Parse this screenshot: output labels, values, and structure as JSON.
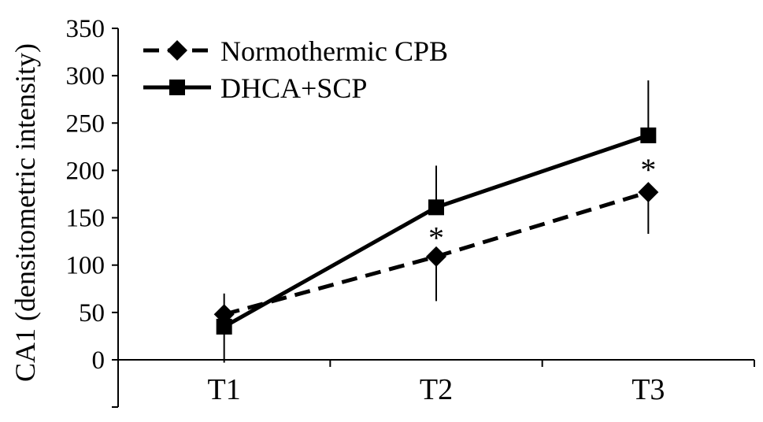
{
  "chart_data": {
    "type": "line",
    "title": "",
    "xlabel": "",
    "ylabel": "CA1 (densitometric intensity)",
    "categories": [
      "T1",
      "T2",
      "T3"
    ],
    "ylim": [
      0,
      350
    ],
    "yticks": [
      0,
      50,
      100,
      150,
      200,
      250,
      300,
      350
    ],
    "ytick_labels": [
      "0",
      "50",
      "100",
      "150",
      "200",
      "250",
      "300",
      "350"
    ],
    "grid": false,
    "legend_position": "top-left",
    "series": [
      {
        "name": "Normothermic CPB",
        "marker": "diamond",
        "line_style": "dashed",
        "color": "#000000",
        "values": [
          48,
          109,
          177
        ],
        "error_upper": [
          22,
          0,
          0
        ],
        "error_lower": [
          0,
          47,
          44
        ]
      },
      {
        "name": "DHCA+SCP",
        "marker": "square",
        "line_style": "solid",
        "color": "#000000",
        "values": [
          35,
          161,
          237
        ],
        "error_upper": [
          0,
          44,
          58
        ],
        "error_lower": [
          38,
          0,
          0
        ]
      }
    ],
    "annotations": [
      {
        "text": "*",
        "category": "T2",
        "value": 136
      },
      {
        "text": "*",
        "category": "T3",
        "value": 208
      }
    ]
  }
}
